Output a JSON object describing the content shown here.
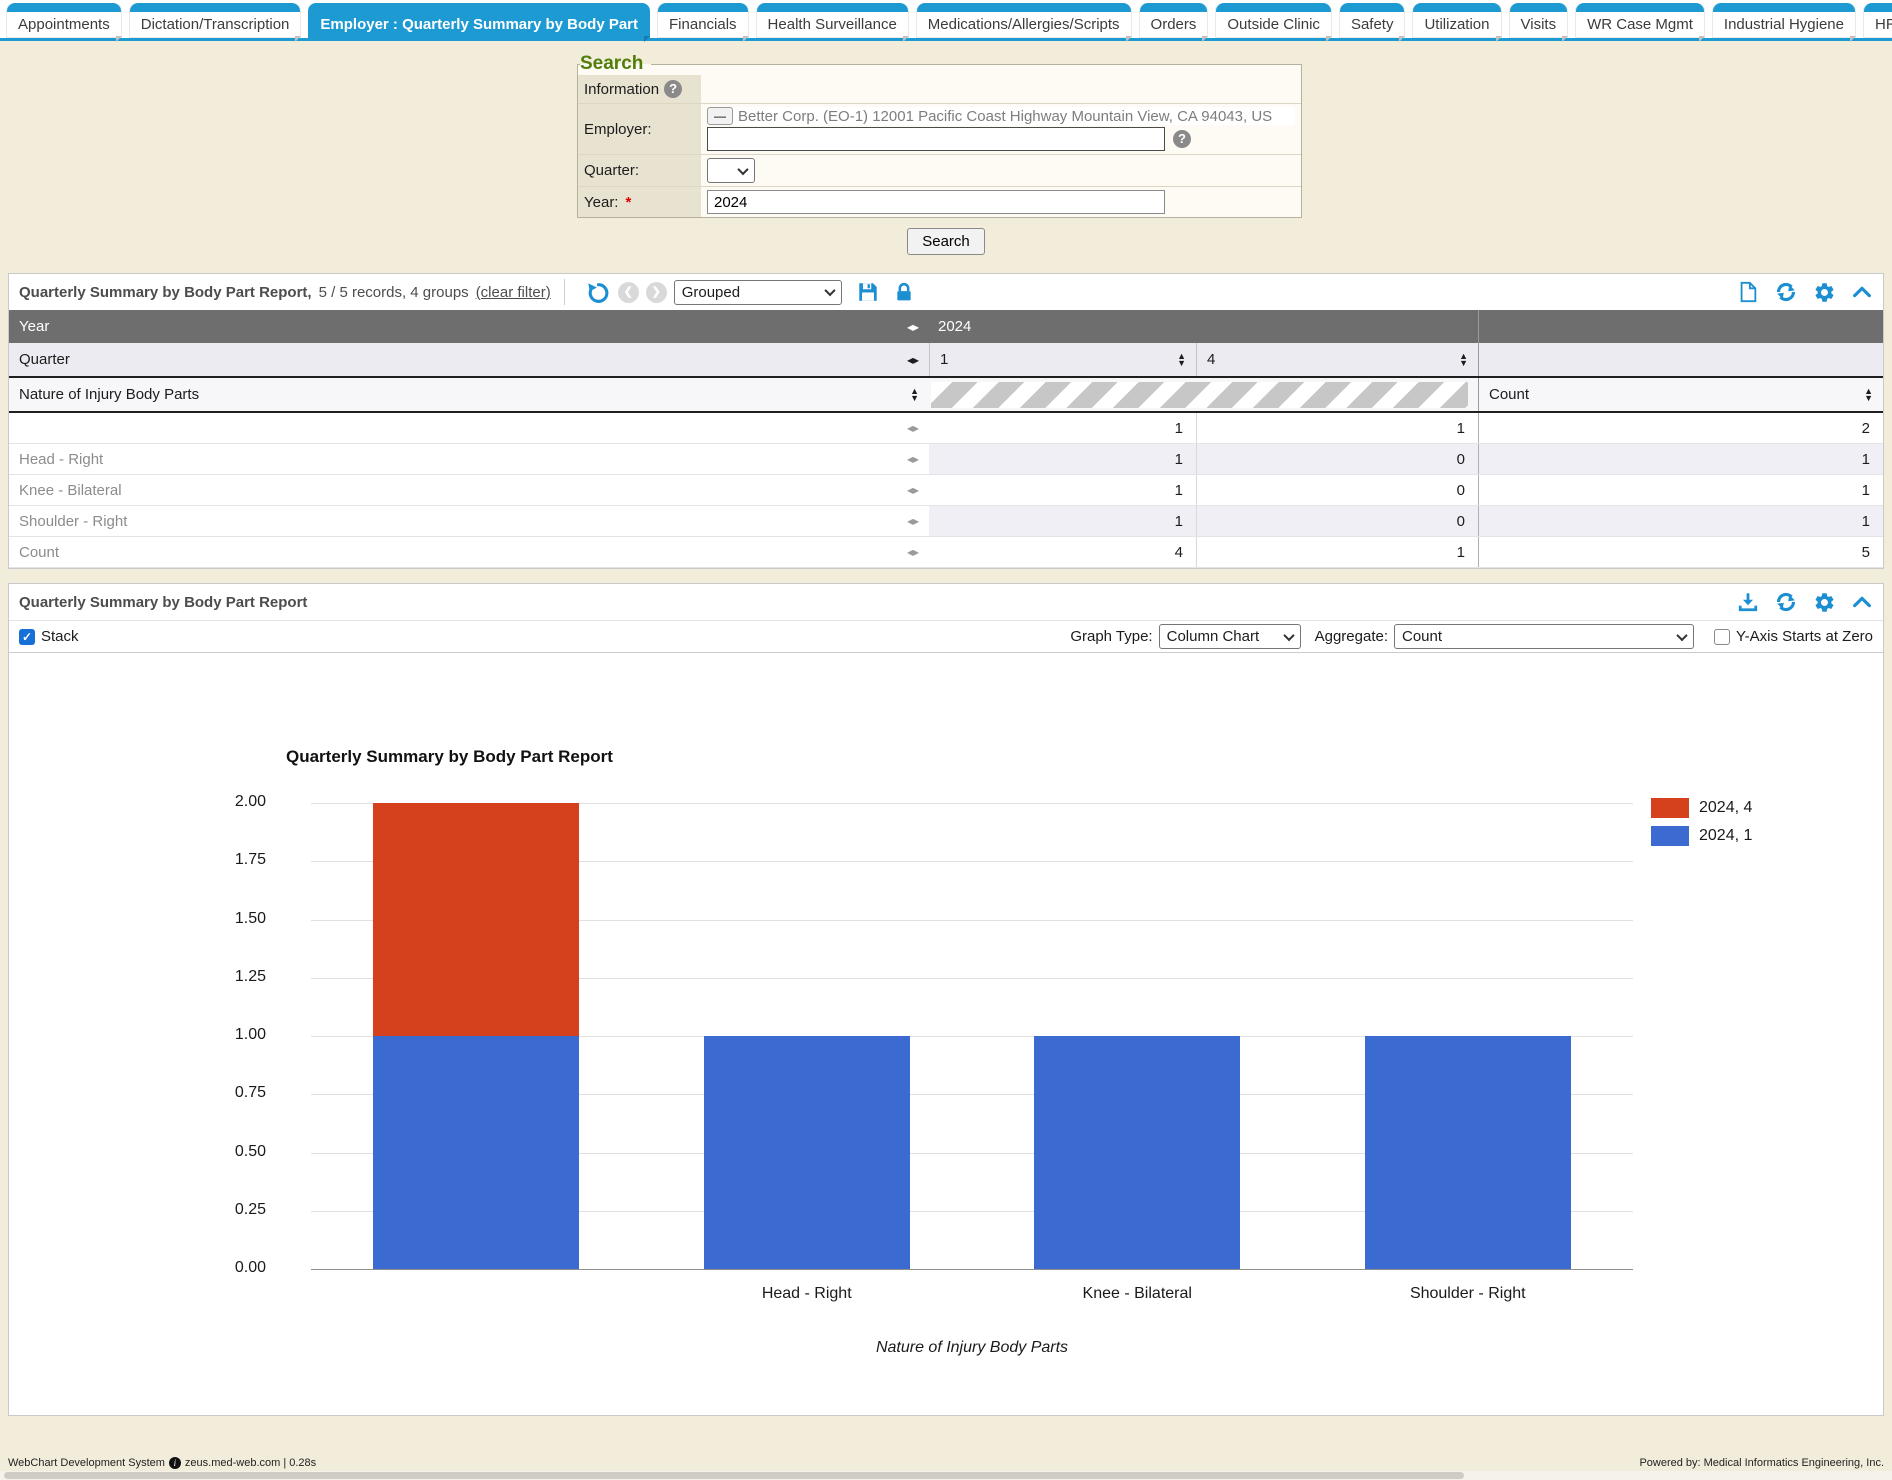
{
  "colors": {
    "accent": "#1e9ad3",
    "icon_blue": "#1b8fd1",
    "header_row_gray": "#6e6e6e",
    "bar_red": "#d5411d",
    "bar_blue": "#3b6bd1",
    "page_bg": "#f2ecdb"
  },
  "tabs": {
    "items": [
      {
        "label": "Appointments",
        "active": false
      },
      {
        "label": "Dictation/Transcription",
        "active": false
      },
      {
        "label": "Employer : Quarterly Summary by Body Part",
        "active": true
      },
      {
        "label": "Financials",
        "active": false
      },
      {
        "label": "Health Surveillance",
        "active": false
      },
      {
        "label": "Medications/Allergies/Scripts",
        "active": false
      },
      {
        "label": "Orders",
        "active": false
      },
      {
        "label": "Outside Clinic",
        "active": false
      },
      {
        "label": "Safety",
        "active": false
      },
      {
        "label": "Utilization",
        "active": false
      },
      {
        "label": "Visits",
        "active": false
      },
      {
        "label": "WR Case Mgmt",
        "active": false
      },
      {
        "label": "Industrial Hygiene",
        "active": false
      },
      {
        "label": "HR Data Feed",
        "active": false
      }
    ]
  },
  "search": {
    "legend": "Search",
    "info_label": "Information",
    "employer_label": "Employer:",
    "employer_remove_button": "—",
    "employer_value": "Better Corp. (EO-1) 12001 Pacific Coast Highway Mountain View, CA 94043, US",
    "quarter_label": "Quarter:",
    "quarter_value": "",
    "year_label": "Year:",
    "year_required_mark": "*",
    "year_value": "2024",
    "search_button": "Search"
  },
  "report_panel": {
    "title": "Quarterly Summary by Body Part Report,",
    "records": "5 / 5 records, 4 groups",
    "clear_filter": "(clear filter)",
    "group_select_value": "Grouped"
  },
  "grid": {
    "year_header": "Year",
    "year_value": "2024",
    "quarter_header": "Quarter",
    "quarter_values": [
      "1",
      "4"
    ],
    "body_header": "Nature of Injury Body Parts",
    "count_header": "Count",
    "rows": [
      {
        "label": "",
        "q1": "1",
        "q4": "1",
        "count": "2"
      },
      {
        "label": "Head - Right",
        "q1": "1",
        "q4": "0",
        "count": "1"
      },
      {
        "label": "Knee - Bilateral",
        "q1": "1",
        "q4": "0",
        "count": "1"
      },
      {
        "label": "Shoulder - Right",
        "q1": "1",
        "q4": "0",
        "count": "1"
      },
      {
        "label": "Count",
        "q1": "4",
        "q4": "1",
        "count": "5"
      }
    ]
  },
  "chart_panel": {
    "title": "Quarterly Summary by Body Part Report",
    "stack_label": "Stack",
    "stack_checked": true,
    "graph_type_label": "Graph Type:",
    "graph_type_value": "Column Chart",
    "aggregate_label": "Aggregate:",
    "aggregate_value": "Count",
    "y_axis_zero_label": "Y-Axis Starts at Zero",
    "y_axis_zero_checked": false
  },
  "chart_data": {
    "type": "bar",
    "stacked": true,
    "title": "Quarterly Summary by Body Part Report",
    "categories": [
      "",
      "Head - Right",
      "Knee - Bilateral",
      "Shoulder - Right"
    ],
    "series": [
      {
        "name": "2024, 4",
        "color": "#d5411d",
        "values": [
          1,
          0,
          0,
          0
        ]
      },
      {
        "name": "2024, 1",
        "color": "#3b6bd1",
        "values": [
          1,
          1,
          1,
          1
        ]
      }
    ],
    "xlabel": "Nature of Injury Body Parts",
    "ylabel": "",
    "ylim": [
      0,
      2
    ],
    "ytick_step": 0.25,
    "ytick_labels": [
      "0.00",
      "0.25",
      "0.50",
      "0.75",
      "1.00",
      "1.25",
      "1.50",
      "1.75",
      "2.00"
    ],
    "legend_position": "right",
    "grid": true
  },
  "footer": {
    "app": "WebChart Development System",
    "host": "zeus.med-web.com | 0.28s",
    "powered": "Powered by: Medical Informatics Engineering, Inc."
  }
}
